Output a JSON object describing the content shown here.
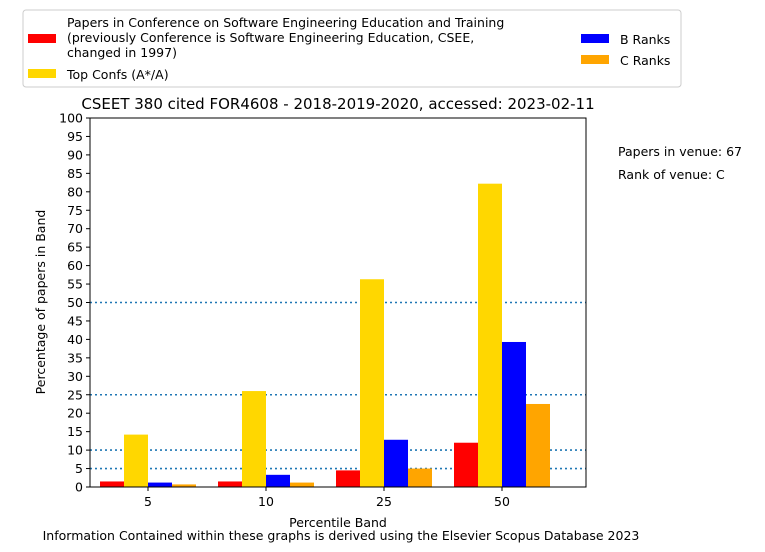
{
  "chart_data": {
    "type": "bar",
    "title": "CSEET 380 cited FOR4608 - 2018-2019-2020, accessed: 2023-02-11",
    "xlabel": "Percentile Band",
    "ylabel": "Percentage of papers in Band",
    "categories": [
      "5",
      "10",
      "25",
      "50"
    ],
    "ylim": [
      0,
      100
    ],
    "yticks": [
      0,
      5,
      10,
      15,
      20,
      25,
      30,
      35,
      40,
      45,
      50,
      55,
      60,
      65,
      70,
      75,
      80,
      85,
      90,
      95,
      100
    ],
    "reference_lines": [
      5,
      10,
      25,
      50
    ],
    "grid": false,
    "legend_position": "top",
    "series": [
      {
        "name": "Papers in Conference on Software Engineering Education and Training (previously Conference is Software Engineering Education, CSEE, changed in 1997)",
        "legend_lines": [
          "Papers in Conference on Software Engineering Education and Training",
          "(previously Conference is Software Engineering Education, CSEE,",
          "changed in 1997)"
        ],
        "color": "#ff0000",
        "values": [
          1.5,
          1.5,
          4.5,
          12
        ]
      },
      {
        "name": "Top Confs (A*/A)",
        "legend_lines": [
          "Top Confs (A*/A)"
        ],
        "color": "#ffd700",
        "values": [
          14.2,
          26,
          56.3,
          82.2
        ]
      },
      {
        "name": "B Ranks",
        "legend_lines": [
          "B Ranks"
        ],
        "color": "#0000ff",
        "values": [
          1.2,
          3.3,
          12.8,
          39.3
        ]
      },
      {
        "name": "C Ranks",
        "legend_lines": [
          "C Ranks"
        ],
        "color": "#ffa500",
        "values": [
          0.7,
          1.2,
          5,
          22.5
        ]
      }
    ],
    "annotations": [
      "Papers in venue: 67",
      "Rank of venue: C"
    ],
    "footer": "Information Contained within these graphs is derived using the Elsevier Scopus Database 2023"
  }
}
